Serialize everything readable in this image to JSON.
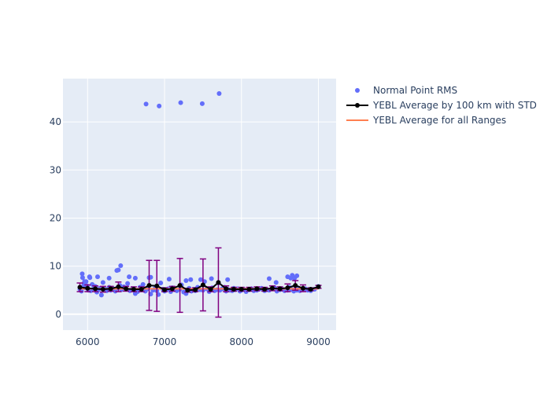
{
  "chart_data": {
    "type": "scatter",
    "xlim": [
      5680,
      9230
    ],
    "ylim": [
      -3.3,
      49
    ],
    "x_ticks": [
      6000,
      7000,
      8000,
      9000
    ],
    "x_tick_labels": [
      "6000",
      "7000",
      "8000",
      "9000"
    ],
    "y_ticks": [
      0,
      10,
      20,
      30,
      40
    ],
    "y_tick_labels": [
      "0",
      "10",
      "20",
      "30",
      "40"
    ],
    "grid": true,
    "legend_position": "top-right, outside plot",
    "colors": {
      "plot_bg": "#e5ecf6",
      "grid": "#ffffff",
      "points": "#636efa",
      "avg_line": "#000000",
      "error_bars": "#800080",
      "overall": "#ff7f50"
    },
    "legend": [
      {
        "label": "Normal Point RMS",
        "style": "marker"
      },
      {
        "label": "YEBL Average by 100 km with STD",
        "style": "line-marker"
      },
      {
        "label": "YEBL Average for all Ranges",
        "style": "line"
      }
    ],
    "series": [
      {
        "name": "Normal Point RMS",
        "mode": "markers",
        "x": [
          5900,
          5920,
          5935,
          5950,
          5965,
          5980,
          5995,
          6010,
          6025,
          6040,
          6060,
          6080,
          6100,
          6120,
          6140,
          6160,
          6180,
          6200,
          6230,
          6250,
          6280,
          6300,
          6330,
          6360,
          6390,
          6400,
          6420,
          6440,
          6470,
          6500,
          6520,
          6550,
          6580,
          6600,
          6620,
          6650,
          6680,
          6700,
          6720,
          6750,
          6780,
          6800,
          6820,
          6850,
          6880,
          6900,
          6920,
          6950,
          6980,
          7000,
          7020,
          7050,
          7080,
          7100,
          7130,
          7160,
          7200,
          7220,
          7250,
          7280,
          7300,
          7320,
          7350,
          7380,
          7400,
          7430,
          7460,
          7500,
          7520,
          7550,
          7580,
          7600,
          7620,
          7650,
          7680,
          7700,
          7720,
          7750,
          7780,
          7800,
          7820,
          7850,
          7880,
          7900,
          7920,
          7950,
          7980,
          8000,
          8030,
          8060,
          8100,
          8130,
          8160,
          8200,
          8230,
          8260,
          8300,
          8330,
          8360,
          8400,
          8430,
          8460,
          8500,
          8530,
          8560,
          8600,
          8620,
          8640,
          8660,
          8680,
          8700,
          8720,
          8740,
          8760,
          8800,
          8830,
          8860,
          8900,
          8950,
          9000,
          6760,
          6930,
          7210,
          7490,
          7710,
          5930,
          5960,
          6030,
          6130,
          6280,
          6380,
          6430,
          6540,
          6620,
          6820,
          7060,
          7280,
          7340,
          7470,
          7610,
          7820,
          8360,
          8450,
          8600,
          8640,
          8660,
          8690,
          8720
        ],
        "y": [
          5.2,
          4.8,
          7.6,
          6.1,
          5.5,
          6.8,
          5.9,
          5.0,
          7.8,
          4.9,
          6.2,
          5.3,
          5.8,
          4.6,
          5.1,
          5.4,
          4.0,
          6.6,
          5.2,
          4.9,
          5.6,
          5.0,
          5.3,
          4.8,
          5.5,
          9.2,
          6.0,
          5.1,
          5.7,
          5.3,
          6.4,
          4.9,
          5.2,
          5.0,
          4.3,
          4.7,
          5.6,
          5.1,
          6.2,
          4.8,
          5.3,
          7.6,
          4.2,
          5.0,
          5.4,
          4.9,
          4.1,
          6.5,
          5.2,
          4.8,
          5.0,
          5.3,
          4.7,
          5.5,
          5.1,
          4.9,
          5.2,
          6.1,
          4.6,
          4.3,
          5.0,
          5.4,
          4.8,
          5.2,
          4.9,
          5.6,
          5.1,
          5.0,
          6.8,
          5.3,
          4.7,
          5.2,
          5.5,
          4.9,
          5.1,
          6.5,
          5.0,
          5.3,
          5.6,
          4.8,
          5.2,
          5.0,
          4.9,
          5.4,
          5.1,
          5.3,
          4.8,
          5.0,
          5.2,
          4.7,
          5.1,
          5.3,
          4.9,
          5.0,
          5.2,
          5.4,
          4.9,
          5.1,
          5.0,
          5.3,
          5.5,
          4.8,
          5.1,
          5.2,
          4.9,
          5.0,
          5.6,
          5.3,
          5.1,
          4.8,
          5.2,
          5.0,
          5.4,
          4.9,
          5.1,
          5.3,
          5.0,
          4.9,
          5.2,
          5.8,
          43.7,
          43.3,
          44.0,
          43.8,
          45.9,
          8.4,
          6.8,
          7.6,
          7.8,
          7.5,
          9.1,
          10.1,
          7.8,
          7.5,
          7.7,
          7.3,
          7.0,
          7.2,
          7.2,
          7.4,
          7.2,
          7.4,
          6.6,
          7.8,
          7.5,
          8.1,
          7.5,
          8.0
        ]
      },
      {
        "name": "YEBL Average by 100 km with STD",
        "mode": "lines+markers",
        "x": [
          5900,
          6000,
          6100,
          6200,
          6300,
          6400,
          6500,
          6600,
          6700,
          6800,
          6900,
          7000,
          7100,
          7200,
          7300,
          7400,
          7500,
          7600,
          7700,
          7800,
          7900,
          8000,
          8100,
          8200,
          8300,
          8400,
          8500,
          8600,
          8700,
          8800,
          8900,
          9000
        ],
        "y": [
          5.6,
          5.4,
          5.3,
          5.2,
          5.3,
          5.7,
          5.3,
          5.2,
          5.2,
          6.0,
          5.9,
          5.1,
          5.3,
          6.0,
          5.0,
          5.1,
          6.1,
          5.2,
          6.6,
          5.3,
          5.2,
          5.2,
          5.2,
          5.3,
          5.2,
          5.4,
          5.3,
          5.5,
          6.0,
          5.4,
          5.2,
          5.7
        ],
        "error": [
          0.9,
          0.7,
          0.6,
          0.6,
          0.5,
          1.0,
          0.5,
          0.5,
          0.5,
          5.2,
          5.3,
          0.4,
          0.5,
          5.6,
          0.4,
          0.4,
          5.4,
          0.5,
          7.2,
          0.6,
          0.4,
          0.4,
          0.4,
          0.4,
          0.4,
          0.5,
          0.4,
          0.8,
          1.0,
          0.7,
          0.3,
          0.3
        ]
      },
      {
        "name": "YEBL Average for all Ranges",
        "mode": "lines",
        "x": [
          5900,
          9000
        ],
        "y": [
          5.3,
          5.3
        ]
      }
    ]
  }
}
